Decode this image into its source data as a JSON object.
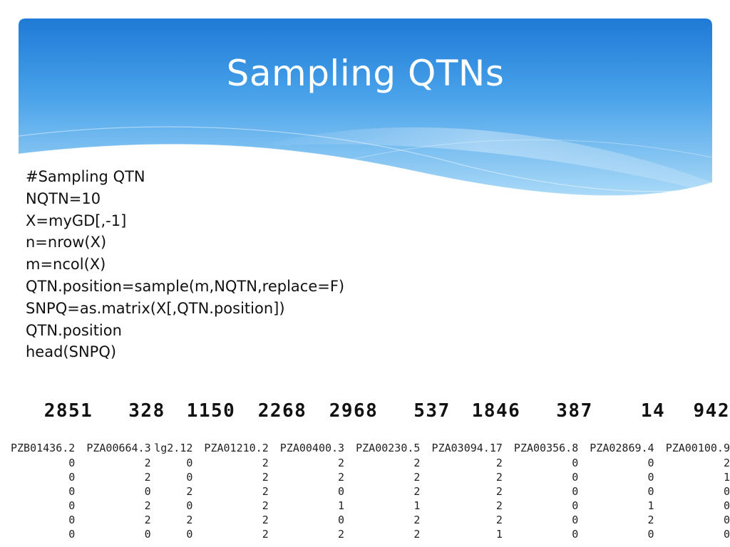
{
  "slide": {
    "title": "Sampling QTNs"
  },
  "colors": {
    "banner_top": "#1f7fd8",
    "banner_bottom": "#bfe4fa",
    "title_text": "#ffffff"
  },
  "code_lines": [
    "#Sampling QTN",
    "NQTN=10",
    "X=myGD[,-1]",
    "n=nrow(X)",
    "m=ncol(X)",
    "QTN.position=sample(m,NQTN,replace=F)",
    "SNPQ=as.matrix(X[,QTN.position])",
    "QTN.position",
    "head(SNPQ)"
  ],
  "qtn_positions": [
    "2851",
    "328",
    "1150",
    "2268",
    "2968",
    "537",
    "1846",
    "387",
    "14",
    "942"
  ],
  "snpq_table": {
    "headers": [
      "PZB01436.2",
      "PZA00664.3",
      "lg2.12",
      "PZA01210.2",
      "PZA00400.3",
      "PZA00230.5",
      "PZA03094.17",
      "PZA00356.8",
      "PZA02869.4",
      "PZA00100.9"
    ],
    "rows": [
      [
        "0",
        "2",
        "0",
        "2",
        "2",
        "2",
        "2",
        "0",
        "0",
        "2"
      ],
      [
        "0",
        "2",
        "0",
        "2",
        "2",
        "2",
        "2",
        "0",
        "0",
        "1"
      ],
      [
        "0",
        "0",
        "2",
        "2",
        "0",
        "2",
        "2",
        "0",
        "0",
        "0"
      ],
      [
        "0",
        "2",
        "0",
        "2",
        "1",
        "1",
        "2",
        "0",
        "1",
        "0"
      ],
      [
        "0",
        "2",
        "2",
        "2",
        "0",
        "2",
        "2",
        "0",
        "2",
        "0"
      ],
      [
        "0",
        "0",
        "0",
        "2",
        "2",
        "2",
        "1",
        "0",
        "0",
        "0"
      ]
    ]
  }
}
